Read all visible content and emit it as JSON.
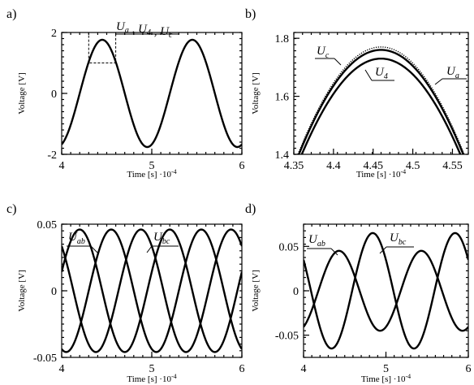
{
  "chart_data": [
    {
      "panel": "a)",
      "type": "line",
      "xlabel": "Time [s] ·10",
      "xlabel_exp": "-4",
      "ylabel": "Voltage [V]",
      "xlim": [
        4,
        6
      ],
      "ylim": [
        -2,
        2
      ],
      "xticks": [
        "4",
        "5",
        "6"
      ],
      "yticks": [
        "2",
        "0",
        "-2"
      ],
      "annotation": {
        "parts": [
          {
            "s": "U",
            "sub": "a"
          },
          {
            "s": "U",
            "sub": "4"
          },
          {
            "s": "U",
            "sub": "c"
          }
        ]
      },
      "zoom_box": {
        "x": [
          4.3,
          4.6
        ],
        "y": [
          1.0,
          2.0
        ]
      },
      "series": [
        {
          "label": "Ua, U4, Uc",
          "amplitude": 1.76,
          "period": 1.0,
          "peaks": [
            4.45,
            5.45
          ]
        }
      ]
    },
    {
      "panel": "b)",
      "type": "line",
      "xlabel": "Time [s] ·10",
      "xlabel_exp": "-4",
      "ylabel": "Voltage [V]",
      "xlim": [
        4.35,
        4.57
      ],
      "ylim": [
        1.4,
        1.82
      ],
      "xticks": [
        "4.35",
        "4.4",
        "4.45",
        "4.5",
        "4.55"
      ],
      "yticks": [
        "1.8",
        "1.6",
        "1.4"
      ],
      "series": [
        {
          "name": "U",
          "sub": "c",
          "peak_x": 4.46,
          "peak_y": 1.77,
          "style": "dotted"
        },
        {
          "name": "U",
          "sub": "4",
          "peak_x": 4.46,
          "peak_y": 1.73,
          "style": "solid"
        },
        {
          "name": "U",
          "sub": "a",
          "peak_x": 4.46,
          "peak_y": 1.76,
          "style": "solid"
        }
      ]
    },
    {
      "panel": "c)",
      "type": "line",
      "xlabel": "Time [s] ·10",
      "xlabel_exp": "-4",
      "ylabel": "Voltage [V]",
      "xlim": [
        4,
        6
      ],
      "ylim": [
        -0.05,
        0.05
      ],
      "xticks": [
        "4",
        "5",
        "6"
      ],
      "yticks": [
        "0.05",
        "0",
        "-0.05"
      ],
      "series": [
        {
          "name": "U",
          "sub": "ab",
          "amplitude": 0.046,
          "peaks": [
            4.55,
            5.55
          ]
        },
        {
          "name": "U",
          "sub": "bc",
          "amplitude": 0.046,
          "peaks": [
            4.88,
            5.88
          ]
        },
        {
          "name": "",
          "sub": "",
          "amplitude": 0.046,
          "peaks": [
            4.2,
            5.2
          ]
        }
      ]
    },
    {
      "panel": "d)",
      "type": "line",
      "xlabel": "Time [s] ·10",
      "xlabel_exp": "-4",
      "ylabel": "Voltage [V]",
      "xlim": [
        4,
        6
      ],
      "ylim": [
        -0.075,
        0.075
      ],
      "xticks": [
        "4",
        "5",
        "6"
      ],
      "yticks": [
        "0.05",
        "0",
        "-0.05"
      ],
      "series": [
        {
          "name": "U",
          "sub": "ab",
          "amplitude": 0.045,
          "peaks": [
            4.43,
            5.43
          ],
          "offset": 0.0
        },
        {
          "name": "U",
          "sub": "bc",
          "amplitude": 0.065,
          "peaks": [
            4.84,
            5.84
          ],
          "offset": 0.0
        }
      ]
    }
  ]
}
